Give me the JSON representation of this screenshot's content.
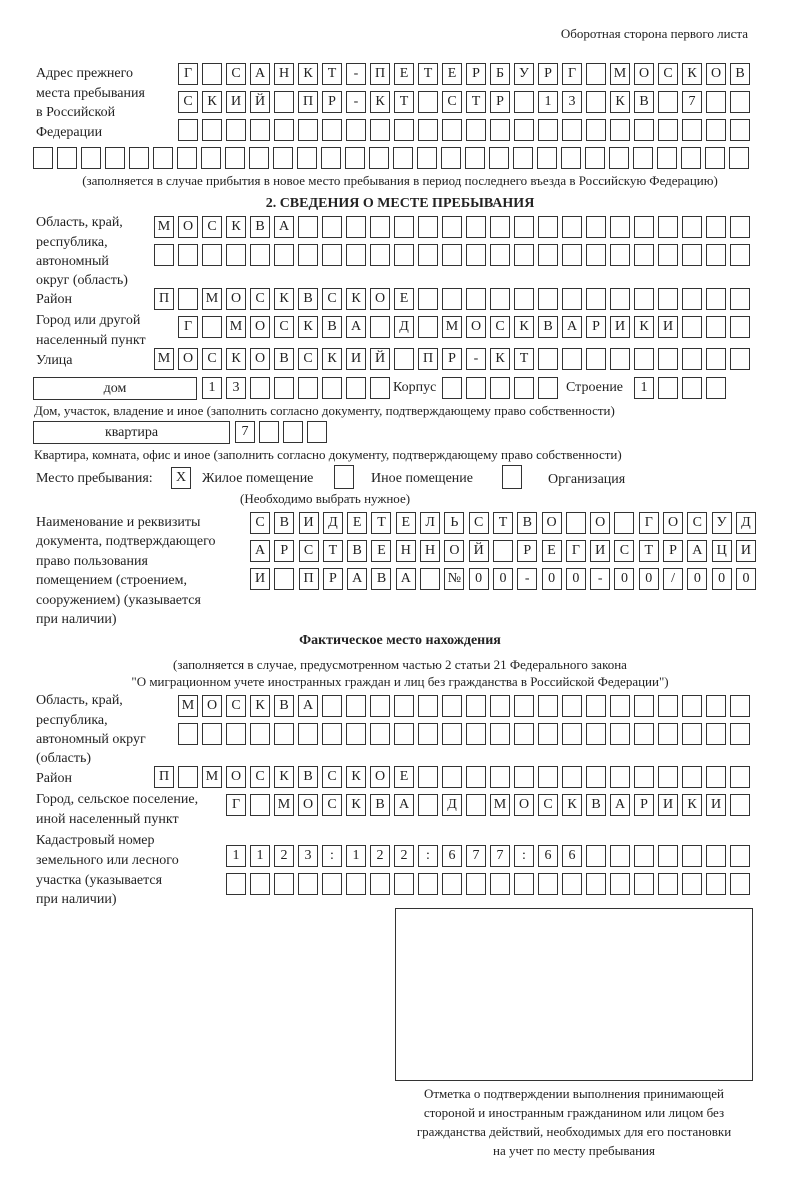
{
  "header": {
    "page_side": "Оборотная сторона первого листа"
  },
  "previous_address": {
    "label": [
      "Адрес прежнего",
      "места пребывания",
      "в Российской",
      "Федерации"
    ],
    "rows": [
      "Г САНКТ-ПЕТЕРБУРГ МОСКОВ",
      "СКИЙ ПР-КТ СТР 13 КВ 7",
      "",
      ""
    ],
    "note": "(заполняется в случае прибытия в новое место пребывания в период последнего въезда в Российскую Федерацию)"
  },
  "section2": {
    "title": "2. СВЕДЕНИЯ О МЕСТЕ ПРЕБЫВАНИЯ",
    "region_label": [
      "Область, край,",
      "республика,",
      "автономный",
      "округ (область)"
    ],
    "region_rows": [
      "МОСКВА",
      ""
    ],
    "district_label": "Район",
    "district": "П МОСКВСКОЕ",
    "city_label": [
      "Город или другой",
      "населенный пункт"
    ],
    "city": "Г МОСКВА Д МОСКВАРИКИ",
    "street_label": "Улица",
    "street": "МОСКОВСКИЙ ПР-КТ",
    "house_type": "дом",
    "house_number": "13",
    "korpus_label": "Корпус",
    "korpus": "",
    "building_label": "Строение",
    "building": "1",
    "house_note": "Дом, участок, владение и иное (заполнить согласно документу, подтверждающему право собственности)",
    "apartment_type": "квартира",
    "apartment_number": "7",
    "apartment_note": "Квартира, комната, офис и иное (заполнить согласно документу, подтверждающему право собственности)",
    "stay_place_label": "Место пребывания:",
    "stay_options": [
      {
        "label": "Жилое помещение",
        "mark": "Х"
      },
      {
        "label": "Иное помещение",
        "mark": ""
      },
      {
        "label": "Организация",
        "mark": ""
      }
    ],
    "stay_note": "(Необходимо выбрать нужное)",
    "doc_label": [
      "Наименование и реквизиты",
      "документа, подтверждающего",
      "право пользования",
      "помещением (строением,",
      "сооружением) (указывается",
      "при наличии)"
    ],
    "doc_rows": [
      "СВИДЕТЕЛЬСТВО О ГОСУД",
      "АРСТВЕННОЙ РЕГИСТРАЦИ",
      "И ПРАВА №00-00-00/000"
    ]
  },
  "actual": {
    "title": "Фактическое место нахождения",
    "note": [
      "(заполняется в случае, предусмотренном частью 2 статьи 21 Федерального закона",
      "\"О миграционном учете иностранных граждан и лиц без гражданства в Российской Федерации\")"
    ],
    "region_label": [
      "Область, край,",
      "республика,",
      "автономный округ",
      "(область)"
    ],
    "region_rows": [
      "МОСКВА",
      ""
    ],
    "district_label": "Район",
    "district": "П МОСКВСКОЕ",
    "city_label": [
      "Город, сельское поселение,",
      "иной населенный пункт"
    ],
    "city": "Г МОСКВА Д МОСКВАРИКИ",
    "cadastral_label": [
      "Кадастровый номер",
      "земельного или лесного",
      "участка (указывается",
      "при наличии)"
    ],
    "cadastral_rows": [
      "1123:122:677:66",
      ""
    ]
  },
  "stamp": {
    "caption": [
      "Отметка о подтверждении выполнения принимающей",
      "стороной и иностранным гражданином или лицом без",
      "гражданства действий, необходимых для его постановки",
      "на учет по месту пребывания"
    ]
  }
}
